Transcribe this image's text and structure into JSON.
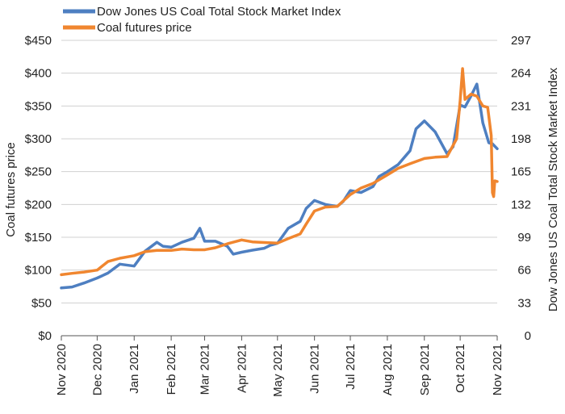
{
  "chart_data": {
    "type": "line",
    "title": "",
    "xlabel": "",
    "y_left_label": "Coal futures price",
    "y_right_label": "Dow Jones US Coal Total Stock Market Index",
    "y_left_ticks": [
      "$0",
      "$50",
      "$100",
      "$150",
      "$200",
      "$250",
      "$300",
      "$350",
      "$400",
      "$450"
    ],
    "y_right_ticks": [
      "0",
      "33",
      "66",
      "99",
      "132",
      "165",
      "198",
      "231",
      "264",
      "297"
    ],
    "y_left_range": [
      0,
      450
    ],
    "y_right_range": [
      0,
      297
    ],
    "x_ticks": [
      "Nov 2020",
      "Dec 2020",
      "Jan 2021",
      "Feb 2021",
      "Mar 2021",
      "Apr 2021",
      "May 2021",
      "Jun 2021",
      "Jul 2021",
      "Aug 2021",
      "Sep 2021",
      "Oct 2021",
      "Nov 2021"
    ],
    "grid": "horizontal",
    "legend_position": "top-left",
    "series": [
      {
        "name": "Dow Jones US Coal Total Stock Market Index",
        "axis": "right",
        "color": "#4e7fc1",
        "points": [
          [
            "Nov 2020",
            48
          ],
          [
            "Nov 10, 2020",
            49
          ],
          [
            "Nov 20, 2020",
            53
          ],
          [
            "Dec 2020",
            58
          ],
          [
            "Dec 10, 2020",
            63
          ],
          [
            "Dec 20, 2020",
            72
          ],
          [
            "Jan 2021",
            70
          ],
          [
            "Jan 10, 2021",
            85
          ],
          [
            "Jan 20, 2021",
            94
          ],
          [
            "Jan 25, 2021",
            90
          ],
          [
            "Feb 2021",
            89
          ],
          [
            "Feb 10, 2021",
            94
          ],
          [
            "Feb 20, 2021",
            98
          ],
          [
            "Feb 25, 2021",
            108
          ],
          [
            "Mar 2021",
            95
          ],
          [
            "Mar 10, 2021",
            95
          ],
          [
            "Mar 20, 2021",
            90
          ],
          [
            "Mar 25, 2021",
            82
          ],
          [
            "Apr 2021",
            84
          ],
          [
            "Apr 10, 2021",
            86
          ],
          [
            "Apr 20, 2021",
            88
          ],
          [
            "Apr 25, 2021",
            91
          ],
          [
            "May 2021",
            93
          ],
          [
            "May 10, 2021",
            108
          ],
          [
            "May 20, 2021",
            115
          ],
          [
            "May 25, 2021",
            128
          ],
          [
            "Jun 2021",
            136
          ],
          [
            "Jun 10, 2021",
            132
          ],
          [
            "Jun 20, 2021",
            130
          ],
          [
            "Jun 25, 2021",
            135
          ],
          [
            "Jul 2021",
            146
          ],
          [
            "Jul 10, 2021",
            144
          ],
          [
            "Jul 20, 2021",
            150
          ],
          [
            "Jul 25, 2021",
            160
          ],
          [
            "Aug 2021",
            165
          ],
          [
            "Aug 10, 2021",
            172
          ],
          [
            "Aug 20, 2021",
            186
          ],
          [
            "Aug 25, 2021",
            208
          ],
          [
            "Sep 2021",
            216
          ],
          [
            "Sep 10, 2021",
            205
          ],
          [
            "Sep 20, 2021",
            183
          ],
          [
            "Sep 25, 2021",
            190
          ],
          [
            "Oct 2021",
            232
          ],
          [
            "Oct 5, 2021",
            230
          ],
          [
            "Oct 10, 2021",
            241
          ],
          [
            "Oct 15, 2021",
            253
          ],
          [
            "Oct 20, 2021",
            214
          ],
          [
            "Oct 25, 2021",
            194
          ],
          [
            "Oct 28, 2021",
            193
          ],
          [
            "Nov 2021",
            188
          ]
        ]
      },
      {
        "name": "Coal futures price",
        "axis": "left",
        "color": "#f0862f",
        "points": [
          [
            "Nov 2020",
            93
          ],
          [
            "Nov 10, 2020",
            95
          ],
          [
            "Nov 20, 2020",
            97
          ],
          [
            "Dec 2020",
            100
          ],
          [
            "Dec 10, 2020",
            113
          ],
          [
            "Dec 20, 2020",
            118
          ],
          [
            "Jan 2021",
            122
          ],
          [
            "Jan 10, 2021",
            128
          ],
          [
            "Jan 20, 2021",
            130
          ],
          [
            "Feb 2021",
            130
          ],
          [
            "Feb 10, 2021",
            132
          ],
          [
            "Feb 20, 2021",
            131
          ],
          [
            "Mar 2021",
            131
          ],
          [
            "Mar 10, 2021",
            134
          ],
          [
            "Mar 20, 2021",
            140
          ],
          [
            "Apr 2021",
            146
          ],
          [
            "Apr 10, 2021",
            143
          ],
          [
            "Apr 20, 2021",
            142
          ],
          [
            "May 2021",
            141
          ],
          [
            "May 10, 2021",
            148
          ],
          [
            "May 20, 2021",
            155
          ],
          [
            "May 25, 2021",
            170
          ],
          [
            "Jun 2021",
            190
          ],
          [
            "Jun 10, 2021",
            196
          ],
          [
            "Jun 20, 2021",
            197
          ],
          [
            "Jul 2021",
            215
          ],
          [
            "Jul 10, 2021",
            225
          ],
          [
            "Jul 20, 2021",
            232
          ],
          [
            "Aug 2021",
            245
          ],
          [
            "Aug 10, 2021",
            255
          ],
          [
            "Aug 20, 2021",
            262
          ],
          [
            "Sep 2021",
            270
          ],
          [
            "Sep 10, 2021",
            272
          ],
          [
            "Sep 20, 2021",
            273
          ],
          [
            "Sep 28, 2021",
            300
          ],
          [
            "Oct 2021",
            358
          ],
          [
            "Oct 3, 2021",
            407
          ],
          [
            "Oct 5, 2021",
            360
          ],
          [
            "Oct 10, 2021",
            368
          ],
          [
            "Oct 15, 2021",
            365
          ],
          [
            "Oct 20, 2021",
            350
          ],
          [
            "Oct 24, 2021",
            348
          ],
          [
            "Oct 27, 2021",
            305
          ],
          [
            "Oct 28, 2021",
            218
          ],
          [
            "Oct 29, 2021",
            212
          ],
          [
            "Oct 30, 2021",
            236
          ],
          [
            "Nov 2021",
            235
          ]
        ]
      }
    ]
  }
}
